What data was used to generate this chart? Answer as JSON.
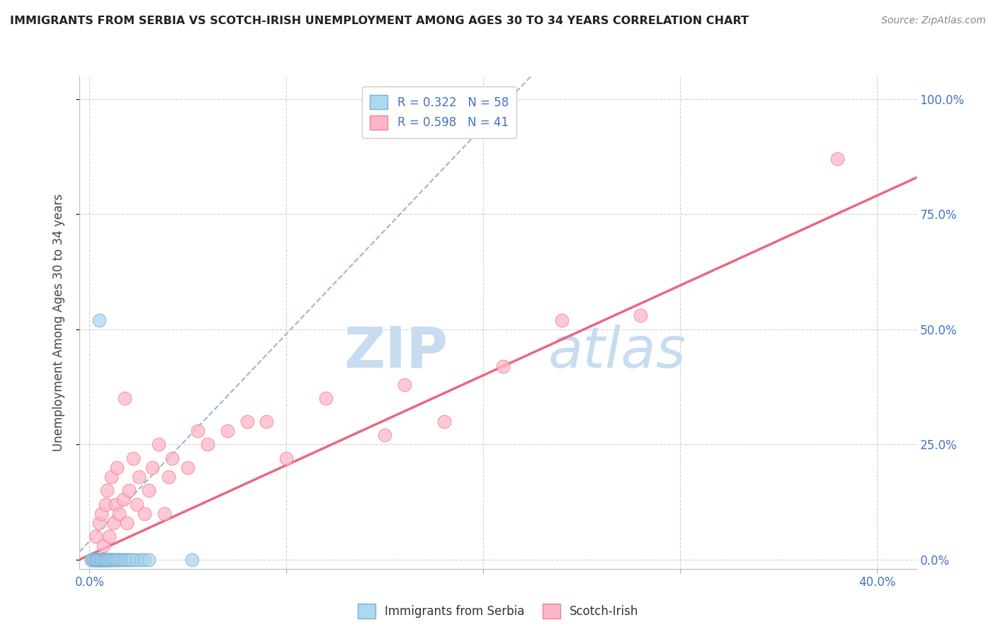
{
  "title": "IMMIGRANTS FROM SERBIA VS SCOTCH-IRISH UNEMPLOYMENT AMONG AGES 30 TO 34 YEARS CORRELATION CHART",
  "source": "Source: ZipAtlas.com",
  "ylabel": "Unemployment Among Ages 30 to 34 years",
  "serbia_R": 0.322,
  "serbia_N": 58,
  "scotch_R": 0.598,
  "scotch_N": 41,
  "serbia_color": "#ADD8F0",
  "scotch_color": "#FFB6C8",
  "serbia_edge": "#7BAFD4",
  "scotch_edge": "#F08090",
  "serbia_line_color": "#8AAAC8",
  "scotch_line_color": "#E8607A",
  "background": "#FFFFFF",
  "grid_color": "#CCCCCC",
  "label_color": "#4472C4",
  "ytick_color": "#4472C4",
  "xtick_color": "#4472C4",
  "ylim": [
    -0.02,
    1.05
  ],
  "xlim": [
    -0.005,
    0.42
  ],
  "yticks": [
    0.0,
    0.25,
    0.5,
    0.75,
    1.0
  ],
  "ytick_labels": [
    "0.0%",
    "25.0%",
    "50.0%",
    "75.0%",
    "100.0%"
  ],
  "xticks": [
    0.0,
    0.1,
    0.2,
    0.3,
    0.4
  ],
  "xtick_labels": [
    "0.0%",
    "",
    "",
    "",
    "40.0%"
  ],
  "serbia_x": [
    0.001,
    0.001,
    0.002,
    0.002,
    0.002,
    0.003,
    0.003,
    0.003,
    0.003,
    0.004,
    0.004,
    0.004,
    0.004,
    0.005,
    0.005,
    0.005,
    0.005,
    0.005,
    0.006,
    0.006,
    0.006,
    0.006,
    0.006,
    0.007,
    0.007,
    0.007,
    0.007,
    0.008,
    0.008,
    0.008,
    0.009,
    0.009,
    0.009,
    0.01,
    0.01,
    0.01,
    0.011,
    0.011,
    0.012,
    0.012,
    0.013,
    0.013,
    0.014,
    0.015,
    0.015,
    0.016,
    0.017,
    0.018,
    0.019,
    0.02,
    0.021,
    0.022,
    0.024,
    0.026,
    0.028,
    0.03,
    0.005,
    0.052
  ],
  "serbia_y": [
    0.0,
    0.0,
    0.0,
    0.0,
    0.0,
    0.0,
    0.0,
    0.0,
    0.0,
    0.0,
    0.0,
    0.0,
    0.0,
    0.0,
    0.0,
    0.0,
    0.0,
    0.0,
    0.0,
    0.0,
    0.0,
    0.0,
    0.0,
    0.0,
    0.0,
    0.0,
    0.0,
    0.0,
    0.0,
    0.0,
    0.0,
    0.0,
    0.0,
    0.0,
    0.0,
    0.0,
    0.0,
    0.0,
    0.0,
    0.0,
    0.0,
    0.0,
    0.0,
    0.0,
    0.0,
    0.0,
    0.0,
    0.0,
    0.0,
    0.0,
    0.0,
    0.0,
    0.0,
    0.0,
    0.0,
    0.0,
    0.52,
    0.0
  ],
  "scotch_x": [
    0.003,
    0.005,
    0.006,
    0.007,
    0.008,
    0.009,
    0.01,
    0.011,
    0.012,
    0.013,
    0.014,
    0.015,
    0.017,
    0.018,
    0.019,
    0.02,
    0.022,
    0.024,
    0.025,
    0.028,
    0.03,
    0.032,
    0.035,
    0.038,
    0.04,
    0.042,
    0.05,
    0.055,
    0.06,
    0.07,
    0.08,
    0.09,
    0.1,
    0.12,
    0.15,
    0.16,
    0.18,
    0.21,
    0.24,
    0.28,
    0.38
  ],
  "scotch_y": [
    0.05,
    0.08,
    0.1,
    0.03,
    0.12,
    0.15,
    0.05,
    0.18,
    0.08,
    0.12,
    0.2,
    0.1,
    0.13,
    0.35,
    0.08,
    0.15,
    0.22,
    0.12,
    0.18,
    0.1,
    0.15,
    0.2,
    0.25,
    0.1,
    0.18,
    0.22,
    0.2,
    0.28,
    0.25,
    0.28,
    0.3,
    0.3,
    0.22,
    0.35,
    0.27,
    0.38,
    0.3,
    0.42,
    0.52,
    0.53,
    0.87
  ],
  "serbia_line_slope": 4.5,
  "serbia_line_intercept": 0.04,
  "scotch_line_slope": 1.95,
  "scotch_line_intercept": 0.01,
  "watermark_zip": "ZIP",
  "watermark_atlas": "atlas",
  "watermark_color_zip": "#C8DCF0",
  "watermark_color_atlas": "#C8DCF0"
}
